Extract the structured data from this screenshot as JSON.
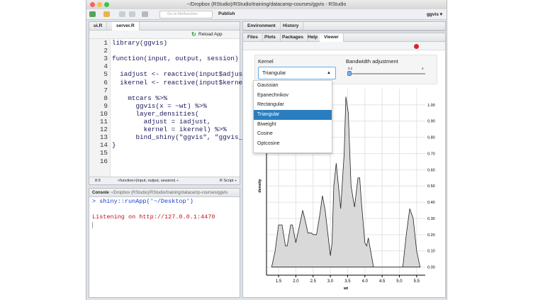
{
  "window": {
    "title": "~/Dropbox (RStudio)/RStudio/training/datacamp-courses/ggvis - RStudio"
  },
  "toolbar": {
    "goto_placeholder": "Go to file/function",
    "publish_label": "Publish",
    "user_label": "ggvis ▾"
  },
  "editor": {
    "tabs": [
      {
        "label": "ui.R"
      },
      {
        "label": "server.R"
      }
    ],
    "reload_label": "Reload App",
    "lines": [
      "library(ggvis)",
      "",
      "function(input, output, session) {",
      "",
      "  iadjust <- reactive(input$adjust)",
      "  ikernel <- reactive(input$kernel)",
      "",
      "    mtcars %>%",
      "      ggvis(x = ~wt) %>%",
      "      layer_densities(",
      "        adjust = iadjust,",
      "        kernel = ikernel) %>%",
      "      bind_shiny(\"ggvis\", \"ggvis_ui\")",
      "}",
      "",
      ""
    ],
    "status_position": "8:9",
    "status_scope": "<function>(input, output, session) ÷",
    "status_type": "R Script ÷"
  },
  "console": {
    "tab_label": "Console",
    "path": "~/Dropbox (RStudio)/RStudio/training/datacamp-courses/ggvis",
    "command": "> shiny::runApp('~/Desktop')",
    "output": "Listening on http://127.0.0.1:4470"
  },
  "env_pane": {
    "tabs": [
      {
        "label": "Environment"
      },
      {
        "label": "History"
      }
    ]
  },
  "files_pane": {
    "tabs": [
      {
        "label": "Files"
      },
      {
        "label": "Plots"
      },
      {
        "label": "Packages"
      },
      {
        "label": "Help"
      },
      {
        "label": "Viewer"
      }
    ],
    "active_tab": "Viewer"
  },
  "viewer": {
    "kernel_label": "Kernel",
    "kernel_value": "Triangular",
    "bandwidth_label": "Bandwidth adjustment",
    "slider_min": "0.2",
    "slider_max": "2",
    "slider_value": 0.2,
    "kernel_options": [
      "Gaussian",
      "Epanechnikov",
      "Rectangular",
      "Triangular",
      "Biweight",
      "Cosine",
      "Optcosine"
    ]
  },
  "chart_data": {
    "type": "area",
    "xlabel": "wt",
    "ylabel": "density",
    "xlim": [
      1.15,
      5.75
    ],
    "ylim": [
      -0.05,
      1.1
    ],
    "xticks": [
      "1.5",
      "2.0",
      "2.5",
      "3.0",
      "3.5",
      "4.0",
      "4.5",
      "5.0",
      "5.5"
    ],
    "yticks": [
      "0.00",
      "0.10",
      "0.20",
      "0.30",
      "0.40",
      "0.50",
      "0.60",
      "0.70",
      "0.80",
      "0.90",
      "1.00"
    ],
    "grid": true,
    "fill": "#d9d9d9",
    "stroke": "#222222",
    "x": [
      1.3,
      1.4,
      1.5,
      1.6,
      1.7,
      1.75,
      1.85,
      1.9,
      2.0,
      2.1,
      2.2,
      2.3,
      2.35,
      2.45,
      2.5,
      2.6,
      2.7,
      2.77,
      2.85,
      3.0,
      3.05,
      3.1,
      3.17,
      3.3,
      3.4,
      3.45,
      3.52,
      3.6,
      3.7,
      3.8,
      3.85,
      3.9,
      4.0,
      4.05,
      4.1,
      4.25,
      5.1,
      5.2,
      5.3,
      5.4,
      5.5,
      5.6
    ],
    "y": [
      0,
      0.1,
      0.26,
      0.26,
      0.13,
      0.13,
      0.26,
      0.26,
      0.15,
      0.25,
      0.35,
      0.26,
      0.21,
      0.21,
      0.2,
      0.2,
      0.33,
      0.44,
      0.35,
      0.07,
      0.15,
      0.5,
      0.64,
      0.36,
      0.7,
      1.05,
      0.95,
      0.5,
      0.37,
      0.55,
      0.55,
      0.4,
      0.15,
      0.13,
      0.18,
      0,
      0,
      0.2,
      0.36,
      0.3,
      0.1,
      0
    ]
  }
}
